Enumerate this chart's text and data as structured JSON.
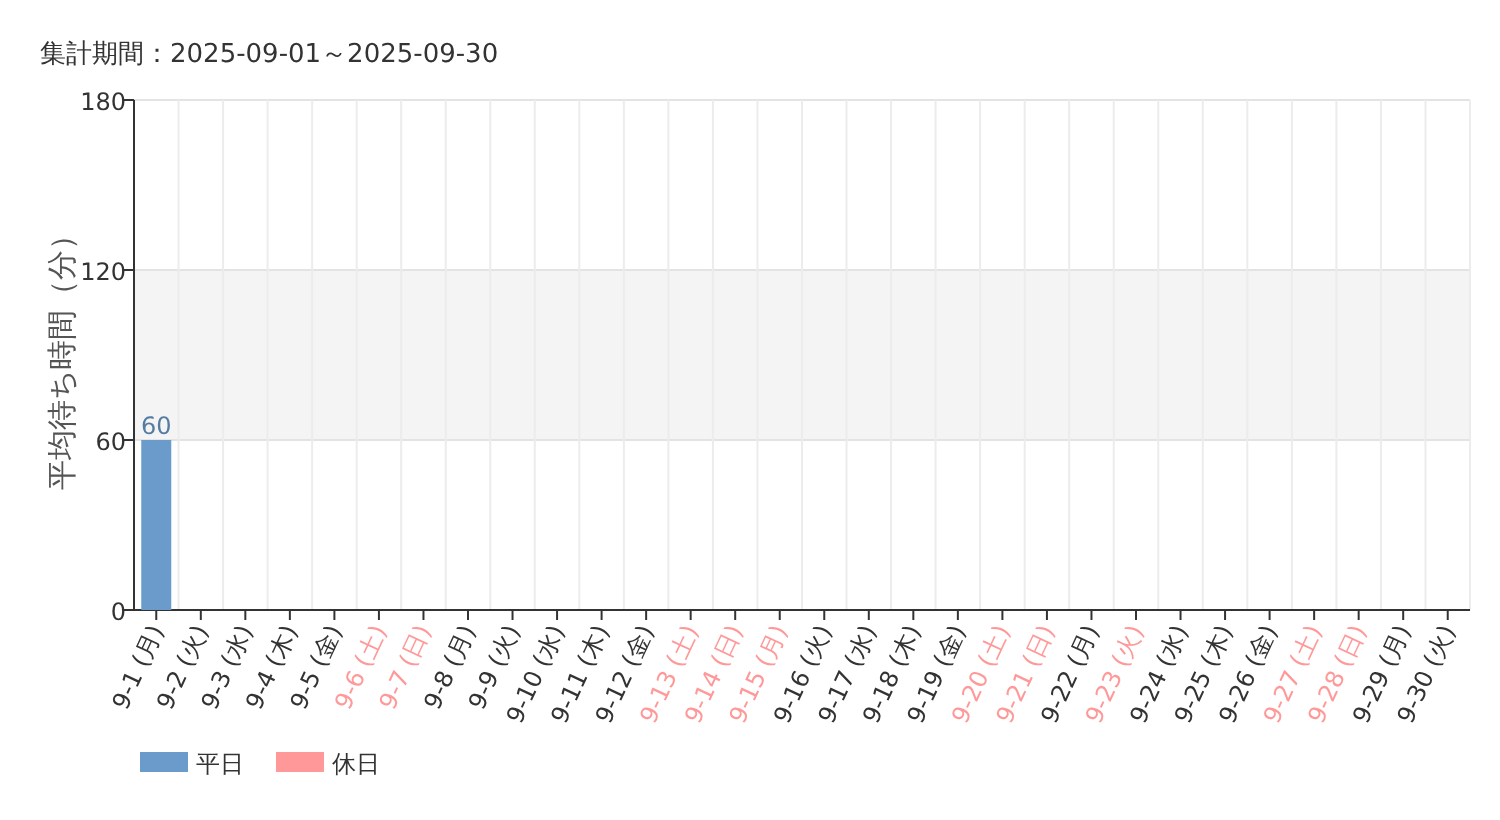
{
  "chart_data": {
    "type": "bar",
    "title": "集計期間：2025-09-01～2025-09-30",
    "ylabel": "平均待ち時間（分）",
    "categories": [
      "9-1 (月)",
      "9-2 (火)",
      "9-3 (水)",
      "9-4 (木)",
      "9-5 (金)",
      "9-6 (土)",
      "9-7 (日)",
      "9-8 (月)",
      "9-9 (火)",
      "9-10 (水)",
      "9-11 (木)",
      "9-12 (金)",
      "9-13 (土)",
      "9-14 (日)",
      "9-15 (月)",
      "9-16 (火)",
      "9-17 (水)",
      "9-18 (木)",
      "9-19 (金)",
      "9-20 (土)",
      "9-21 (日)",
      "9-22 (月)",
      "9-23 (火)",
      "9-24 (水)",
      "9-25 (木)",
      "9-26 (金)",
      "9-27 (土)",
      "9-28 (日)",
      "9-29 (月)",
      "9-30 (火)"
    ],
    "colors": [
      "#6a9bcb",
      "#6a9bcb",
      "#6a9bcb",
      "#6a9bcb",
      "#6a9bcb",
      "#ff9999",
      "#ff9999",
      "#6a9bcb",
      "#6a9bcb",
      "#6a9bcb",
      "#6a9bcb",
      "#6a9bcb",
      "#ff9999",
      "#ff9999",
      "#ff9999",
      "#6a9bcb",
      "#6a9bcb",
      "#6a9bcb",
      "#6a9bcb",
      "#ff9999",
      "#ff9999",
      "#6a9bcb",
      "#ff9999",
      "#6a9bcb",
      "#6a9bcb",
      "#6a9bcb",
      "#ff9999",
      "#ff9999",
      "#6a9bcb",
      "#6a9bcb"
    ],
    "series": [
      {
        "name": "平日",
        "color": "#6a9bcb",
        "values": [
          60,
          null,
          null,
          null,
          null,
          null,
          null,
          null,
          null,
          null,
          null,
          null,
          null,
          null,
          null,
          null,
          null,
          null,
          null,
          null,
          null,
          null,
          null,
          null,
          null,
          null,
          null,
          null,
          null,
          null
        ]
      },
      {
        "name": "休日",
        "color": "#ff9999",
        "values": [
          null,
          null,
          null,
          null,
          null,
          null,
          null,
          null,
          null,
          null,
          null,
          null,
          null,
          null,
          null,
          null,
          null,
          null,
          null,
          null,
          null,
          null,
          null,
          null,
          null,
          null,
          null,
          null,
          null,
          null
        ]
      }
    ],
    "ylim": [
      0,
      180
    ],
    "yticks": [
      0,
      60,
      120,
      180
    ],
    "bands": [
      {
        "axis": "y",
        "from": 60,
        "to": 120,
        "color": "#f4f4f4"
      }
    ],
    "grid": true,
    "legend": "bottom left",
    "data_labels": true
  }
}
